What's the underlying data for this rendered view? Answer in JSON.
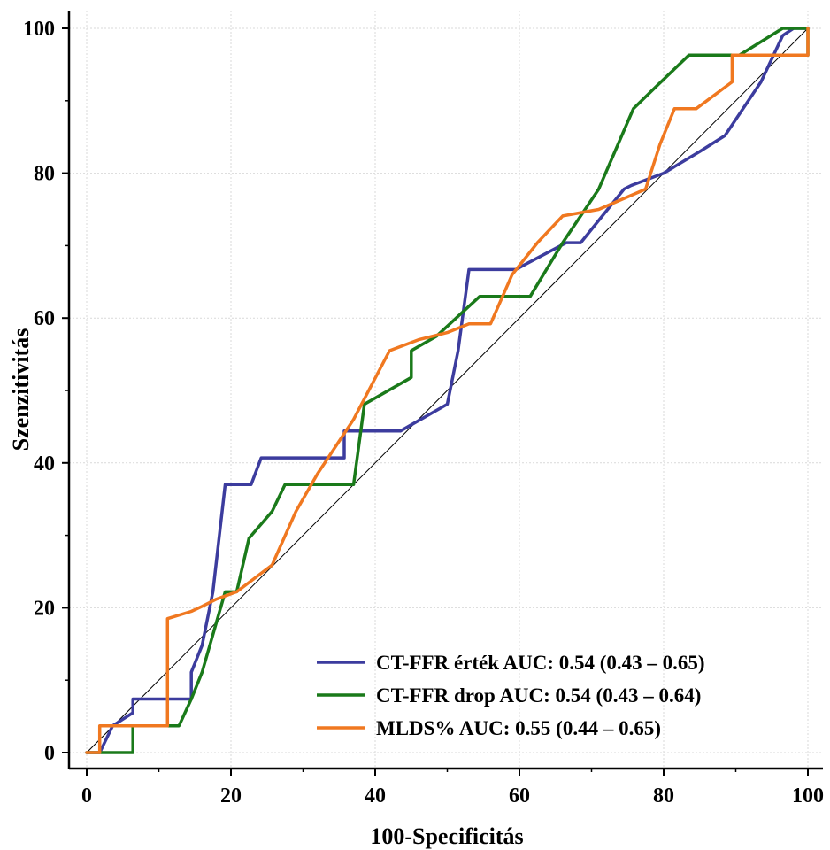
{
  "chart_data": {
    "type": "line",
    "title": "",
    "xlabel": "100-Specificitás",
    "ylabel": "Szenzitivitás",
    "xlim": [
      0,
      100
    ],
    "ylim": [
      0,
      100
    ],
    "xticks": [
      0,
      20,
      40,
      60,
      80,
      100
    ],
    "yticks": [
      0,
      20,
      40,
      60,
      80,
      100
    ],
    "grid": true,
    "legend_position": "bottom-right",
    "reference_line": {
      "x": [
        0,
        100
      ],
      "y": [
        0,
        100
      ],
      "color": "#000000"
    },
    "series": [
      {
        "name": "CT-FFR érték",
        "auc_label": "AUC: 0.54",
        "ci_label": "(0.43 – 0.65)",
        "color": "#3c3c9e",
        "x": [
          0,
          1.8,
          3.6,
          6.4,
          6.4,
          8.0,
          14.5,
          14.5,
          16.0,
          17.5,
          19.2,
          22.8,
          24.2,
          35.7,
          35.7,
          43.5,
          50.0,
          51.5,
          53.0,
          59.5,
          61.0,
          66.5,
          68.5,
          74.5,
          75.5,
          80.0,
          85.0,
          88.5,
          93.5,
          96.5,
          98.0,
          100
        ],
        "y": [
          0,
          0,
          3.7,
          5.5,
          7.4,
          7.4,
          7.4,
          11.1,
          14.8,
          22.2,
          37.0,
          37.0,
          40.7,
          40.7,
          44.4,
          44.4,
          48.1,
          55.5,
          66.7,
          66.7,
          67.5,
          70.4,
          70.4,
          77.8,
          78.3,
          80.0,
          83.0,
          85.2,
          92.6,
          99.0,
          100,
          100
        ]
      },
      {
        "name": "CT-FFR drop",
        "auc_label": "AUC: 0.54",
        "ci_label": "(0.43 – 0.64)",
        "color": "#1a7a1a",
        "x": [
          0,
          1.8,
          6.4,
          6.4,
          12.8,
          14.5,
          16.0,
          19.2,
          20.8,
          22.5,
          25.7,
          27.5,
          37.0,
          38.5,
          45.0,
          45.0,
          48.5,
          54.5,
          61.5,
          66.0,
          71.0,
          75.8,
          79.0,
          83.5,
          90.5,
          96.5,
          100,
          100
        ],
        "y": [
          0,
          0,
          0,
          3.7,
          3.7,
          7.4,
          11.1,
          22.2,
          22.2,
          29.6,
          33.3,
          37.0,
          37.0,
          48.1,
          51.8,
          55.5,
          57.5,
          63.0,
          63.0,
          70.4,
          77.8,
          88.9,
          92.0,
          96.3,
          96.3,
          100,
          100,
          96.3
        ]
      },
      {
        "name": "MLDS%",
        "auc_label": "AUC: 0.55",
        "ci_label": "(0.44 – 0.65)",
        "color": "#f07820",
        "x": [
          0,
          1.8,
          1.8,
          11.2,
          11.2,
          14.5,
          16.0,
          18.0,
          20.8,
          25.7,
          29.0,
          32.0,
          37.0,
          42.0,
          46.0,
          50.0,
          53.0,
          56.0,
          59.0,
          62.5,
          66.0,
          71.0,
          77.5,
          79.5,
          81.5,
          84.5,
          89.5,
          89.5,
          100,
          100
        ],
        "y": [
          0,
          0,
          3.7,
          3.7,
          18.5,
          19.5,
          20.2,
          21.2,
          22.2,
          25.9,
          33.3,
          38.5,
          46.0,
          55.5,
          57.0,
          58.0,
          59.2,
          59.2,
          66.0,
          70.4,
          74.1,
          75.0,
          77.8,
          84.0,
          88.9,
          88.9,
          92.6,
          96.3,
          96.3,
          100
        ]
      }
    ]
  }
}
